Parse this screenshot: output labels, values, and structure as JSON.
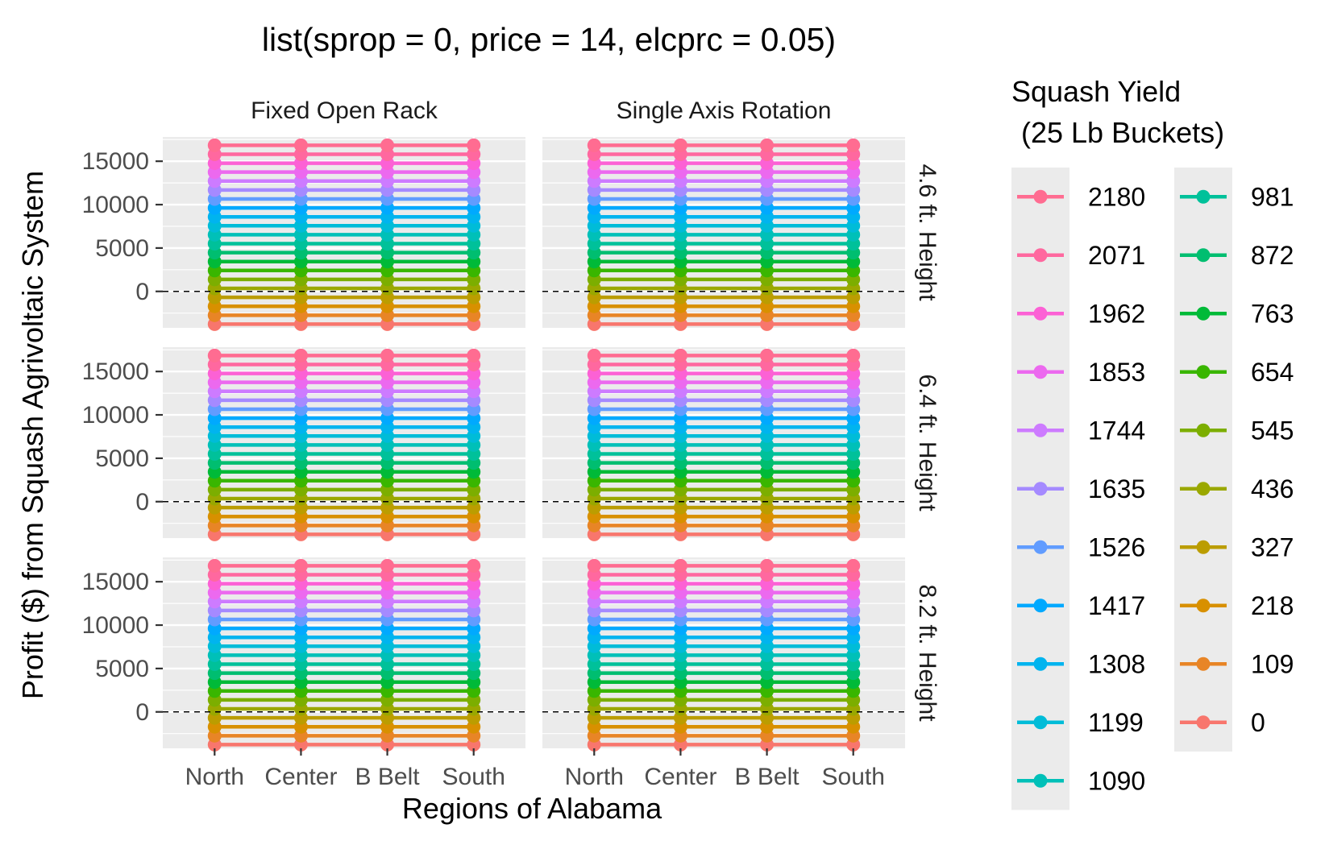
{
  "chart_data": {
    "type": "line",
    "title": "list(sprop = 0, price = 14, elcprc = 0.05)",
    "xlabel": "Regions of Alabama",
    "ylabel": "Profit ($) from Squash Agrivoltaic System",
    "categories": [
      "North",
      "Center",
      "B Belt",
      "South"
    ],
    "facet_columns": [
      "Fixed Open Rack",
      "Single Axis Rotation"
    ],
    "facet_rows": [
      "4.6 ft. Height",
      "6.4 ft. Height",
      "8.2 ft. Height"
    ],
    "yticks": [
      0,
      5000,
      10000,
      15000
    ],
    "ylim": [
      -4200,
      17800
    ],
    "hline": 0,
    "grid": true,
    "legend": {
      "title_line1": "Squash Yield",
      "title_line2": "(25 Lb Buckets)",
      "placement": "right",
      "columns": 2
    },
    "series": [
      {
        "name": "2180",
        "color": "#FF6C91",
        "values": [
          16837,
          16837,
          16837,
          16837
        ]
      },
      {
        "name": "2071",
        "color": "#FF689F",
        "values": [
          15806,
          15806,
          15806,
          15806
        ]
      },
      {
        "name": "1962",
        "color": "#FC61D5",
        "values": [
          14776,
          14776,
          14776,
          14776
        ]
      },
      {
        "name": "1853",
        "color": "#EC69EF",
        "values": [
          13745,
          13745,
          13745,
          13745
        ]
      },
      {
        "name": "1744",
        "color": "#CD7BFF",
        "values": [
          12715,
          12715,
          12715,
          12715
        ]
      },
      {
        "name": "1635",
        "color": "#A58AFF",
        "values": [
          11684,
          11684,
          11684,
          11684
        ]
      },
      {
        "name": "1526",
        "color": "#619CFF",
        "values": [
          10654,
          10654,
          10654,
          10654
        ]
      },
      {
        "name": "1417",
        "color": "#00A9FF",
        "values": [
          9623,
          9623,
          9623,
          9623
        ]
      },
      {
        "name": "1308",
        "color": "#00B4EF",
        "values": [
          8592,
          8592,
          8592,
          8592
        ]
      },
      {
        "name": "1199",
        "color": "#00BCD8",
        "values": [
          7562,
          7562,
          7562,
          7562
        ]
      },
      {
        "name": "1090",
        "color": "#00C0B8",
        "values": [
          6531,
          6531,
          6531,
          6531
        ]
      },
      {
        "name": "981",
        "color": "#00C19A",
        "values": [
          5501,
          5501,
          5501,
          5501
        ]
      },
      {
        "name": "872",
        "color": "#00BE70",
        "values": [
          4470,
          4470,
          4470,
          4470
        ]
      },
      {
        "name": "763",
        "color": "#00BA38",
        "values": [
          3439,
          3439,
          3439,
          3439
        ]
      },
      {
        "name": "654",
        "color": "#39B600",
        "values": [
          2409,
          2409,
          2409,
          2409
        ]
      },
      {
        "name": "545",
        "color": "#7CAE00",
        "values": [
          1378,
          1378,
          1378,
          1378
        ]
      },
      {
        "name": "436",
        "color": "#9AA800",
        "values": [
          348,
          348,
          348,
          348
        ]
      },
      {
        "name": "327",
        "color": "#BB9D00",
        "values": [
          -683,
          -683,
          -683,
          -683
        ]
      },
      {
        "name": "218",
        "color": "#D89000",
        "values": [
          -1713,
          -1713,
          -1713,
          -1713
        ]
      },
      {
        "name": "109",
        "color": "#E88526",
        "values": [
          -2744,
          -2744,
          -2744,
          -2744
        ]
      },
      {
        "name": "0",
        "color": "#F8766D",
        "values": [
          -3775,
          -3775,
          -3775,
          -3775
        ]
      }
    ]
  }
}
